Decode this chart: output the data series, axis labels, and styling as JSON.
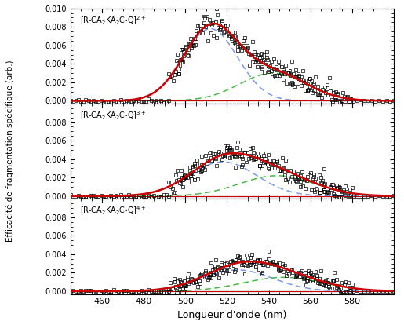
{
  "xlabel": "Longueur d'onde (nm)",
  "ylabel": "Efficacité de fragmentation spécifique (arb.)",
  "xmin": 445,
  "xmax": 600,
  "panels": [
    {
      "label": "[R-CA$_2$KA$_2$C-Q]$^{2+}$",
      "ymax": 0.01,
      "yticks": [
        0.0,
        0.002,
        0.004,
        0.006,
        0.008,
        0.01
      ],
      "gauss1_amp": 0.0078,
      "gauss1_mu": 512,
      "gauss1_sigma": 13,
      "gauss2_amp": 0.003,
      "gauss2_mu": 542,
      "gauss2_sigma": 16,
      "noise_scale": 0.00065,
      "seed": 42,
      "n_scatter": 160
    },
    {
      "label": "[R-CA$_2$KA$_2$C-Q]$^{3+}$",
      "ymax": 0.01,
      "yticks": [
        0.0,
        0.002,
        0.004,
        0.006,
        0.008
      ],
      "gauss1_amp": 0.0037,
      "gauss1_mu": 518,
      "gauss1_sigma": 16,
      "gauss2_amp": 0.0022,
      "gauss2_mu": 544,
      "gauss2_sigma": 18,
      "noise_scale": 0.00055,
      "seed": 7,
      "n_scatter": 150
    },
    {
      "label": "[R-CA$_2$KA$_2$C-Q]$^{4+}$",
      "ymax": 0.01,
      "yticks": [
        0.0,
        0.002,
        0.004,
        0.006,
        0.008
      ],
      "gauss1_amp": 0.0023,
      "gauss1_mu": 525,
      "gauss1_sigma": 17,
      "gauss2_amp": 0.0015,
      "gauss2_mu": 547,
      "gauss2_sigma": 19,
      "noise_scale": 0.00045,
      "seed": 13,
      "n_scatter": 140
    }
  ],
  "red_color": "#cc0000",
  "blue_color": "#7799ee",
  "green_color": "#44bb44",
  "scatter_color": "#000000"
}
